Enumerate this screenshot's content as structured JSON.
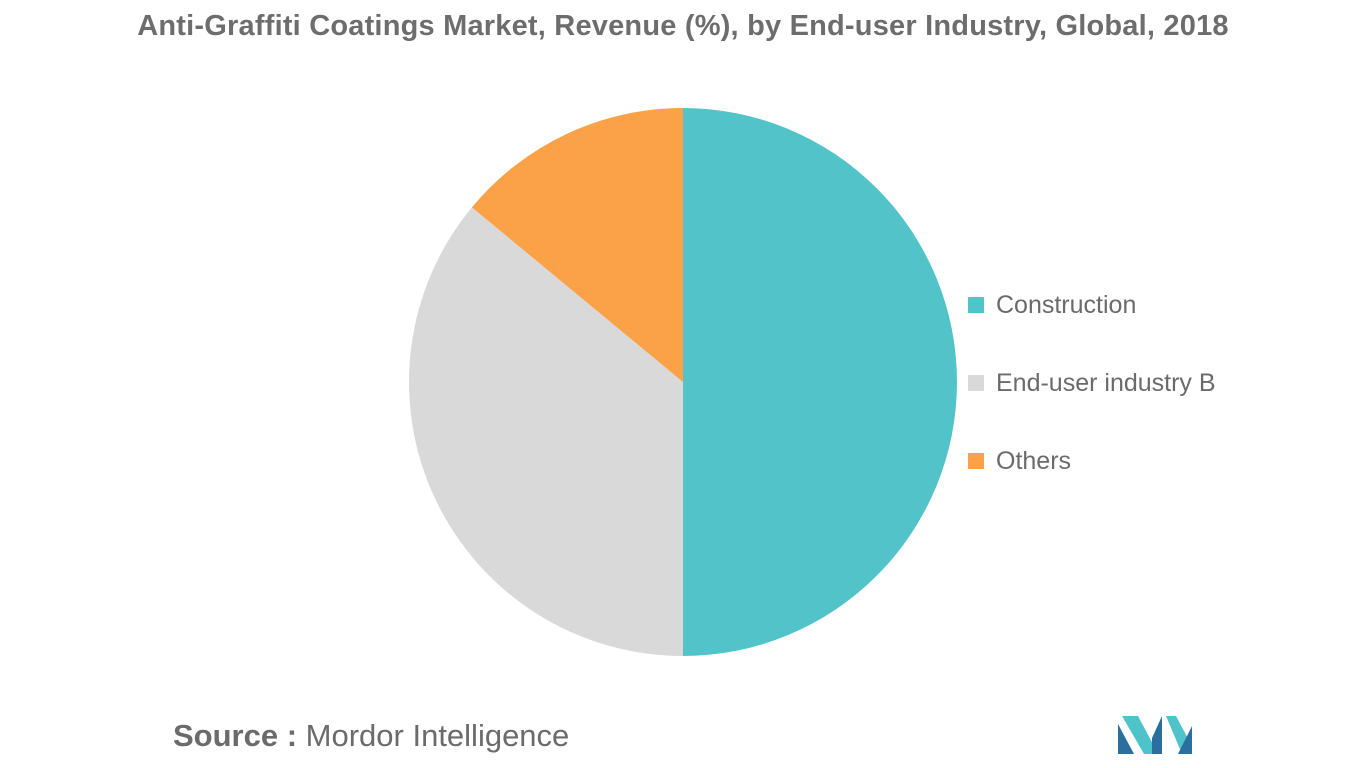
{
  "chart_data": {
    "type": "pie",
    "title": "Anti-Graffiti Coatings Market, Revenue (%), by End-user Industry, Global, 2018",
    "categories": [
      "Construction",
      "End-user industry B",
      "Others"
    ],
    "values": [
      50,
      36,
      14
    ],
    "colors": [
      "#52c4c9",
      "#d9d9d9",
      "#fba147"
    ],
    "start_angle_deg": 0,
    "direction": "clockwise",
    "legend_position": "right"
  },
  "source": {
    "label": "Source :",
    "text": "Mordor Intelligence"
  },
  "logo": {
    "name": "mordor-intelligence-logo",
    "colors": [
      "#2b6f9e",
      "#4ec3c9"
    ]
  }
}
